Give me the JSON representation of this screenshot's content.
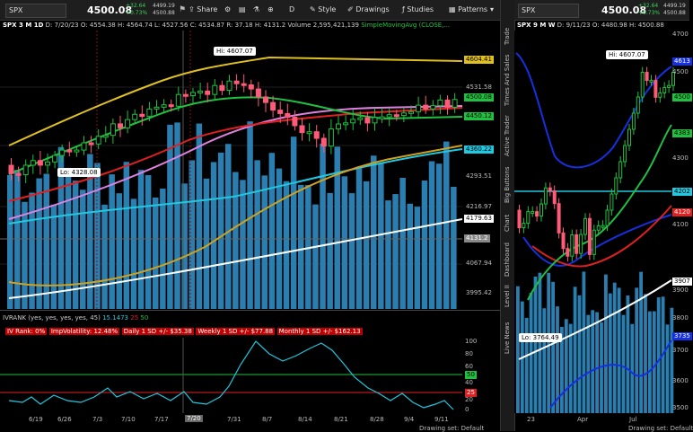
{
  "left_chart": {
    "symbol": "SPX",
    "last_price": "4500.08",
    "change_net": "+32.64",
    "change_pct": "+0.73%",
    "bid": "4499.19",
    "ask": "4500.88",
    "toolbar": {
      "share": "Share",
      "d_label": "D",
      "style": "Style",
      "drawings": "Drawings",
      "studies": "Studies",
      "patterns": "Patterns"
    },
    "info_bar": {
      "title": "SPX 3 M 1D",
      "date": "D: 7/20/23",
      "open": "O: 4554.38",
      "high": "H: 4564.74",
      "low": "L: 4527.56",
      "close": "C: 4534.87",
      "range": "R: 37.18",
      "h2": "H: 4131.2",
      "volume_label": "Volume",
      "volume_value": "2,595,421,139",
      "sma_label": "SimpleMovingAvg (CLOSE,..."
    },
    "price_axis": {
      "tick_4531": "4531.58",
      "tick_4293": "4293.51",
      "tick_4216": "4216.97",
      "tick_4067": "4067.94",
      "tick_3995": "3995.42"
    },
    "price_tags": {
      "t4604": "4604.41",
      "t4500": "4500.08",
      "t4450": "4450.12",
      "t4360": "4360.22",
      "t4179": "4179.63",
      "t4131": "4131.2"
    },
    "callouts": {
      "hi": "Hi: 4607.07",
      "lo": "Lo: 4328.08"
    },
    "dates": [
      "6/19",
      "6/26",
      "7/3",
      "7/10",
      "7/17",
      "7/20",
      "7/31",
      "8/7",
      "8/14",
      "8/21",
      "8/28",
      "9/4",
      "9/11"
    ],
    "ivrank": {
      "title": "IVRANK (yes, yes, yes, yes, 45)",
      "val1": "15.1473",
      "val2": "25",
      "val3": "50",
      "iv_rank": "IV Rank: 0%",
      "imp_vol": "ImpVolatility: 12.48%",
      "daily": "Daily 1 SD +/- $35.38",
      "weekly": "Weekly 1 SD +/- $77.88",
      "monthly": "Monthly 1 SD +/- $162.13",
      "axis": [
        "100",
        "80",
        "60",
        "40",
        "20",
        "0"
      ],
      "tag50": "50",
      "tag25": "25"
    },
    "status": "Drawing set: Default",
    "colors": {
      "sma_yellow": "#e0c020",
      "sma_green": "#20c040",
      "sma_pink": "#e080e0",
      "sma_red": "#e02020",
      "sma_cyan": "#20c8e0",
      "sma_white": "#ffffff",
      "volume": "#2b7fb0"
    }
  },
  "sidebar": {
    "tabs": [
      "Trade",
      "Times And Sales",
      "Active Trader",
      "Big Buttons",
      "Chart",
      "Dashboard",
      "Level II",
      "Live News"
    ]
  },
  "right_chart": {
    "symbol": "SPX",
    "last_price": "4500.08",
    "change_net": "+32.64",
    "change_pct": "+0.73%",
    "bid": "4499.19",
    "ask": "4500.88",
    "info_bar": {
      "title": "SPX 9 M W",
      "date": "D: 9/11/23",
      "open": "O: 4480.98",
      "high": "H: 4500.88"
    },
    "callouts": {
      "hi": "Hi: 4607.07",
      "lo": "Lo: 3764.49"
    },
    "price_axis": [
      "4700",
      "4500",
      "4300",
      "4100",
      "3900",
      "3800",
      "3700",
      "3600",
      "3500"
    ],
    "price_tags": {
      "t4613": "4613",
      "t4500": "4500",
      "t4383": "4383",
      "t4202": "4202",
      "t4120": "4120",
      "t3907": "3907",
      "t3735": "3735"
    },
    "dates": [
      "23",
      "Apr",
      "Jul"
    ],
    "status": "Drawing set: Default"
  }
}
